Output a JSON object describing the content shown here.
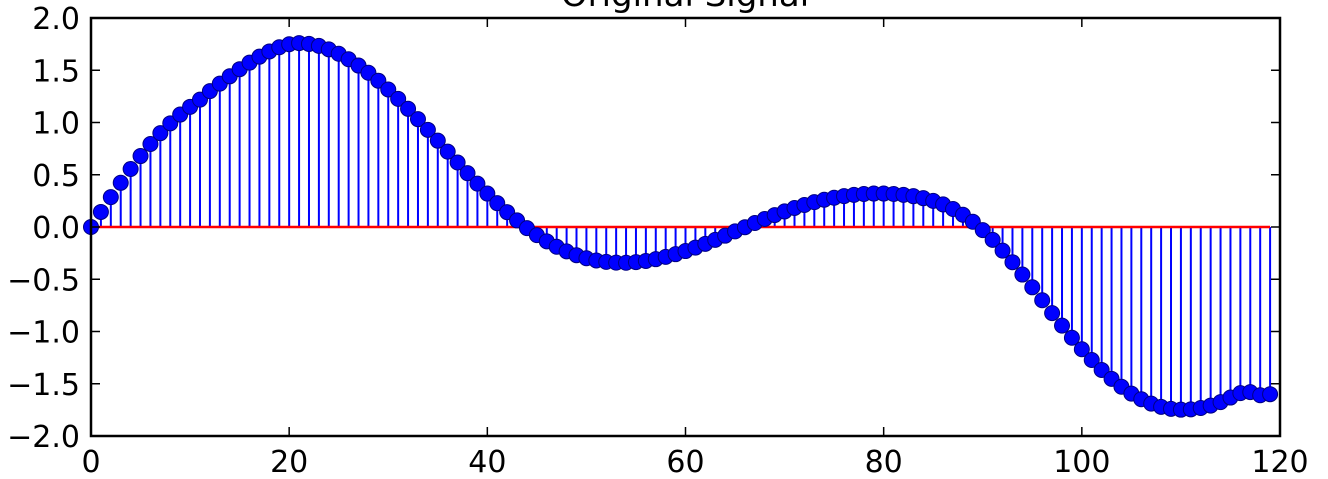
{
  "chart_data": {
    "type": "stem",
    "title": "Original Signal",
    "xlim": [
      0,
      120
    ],
    "ylim": [
      -2.0,
      2.0
    ],
    "x_ticks": [
      "0",
      "20",
      "40",
      "60",
      "80",
      "100",
      "120"
    ],
    "y_ticks": [
      "2.0",
      "1.5",
      "1.0",
      "0.5",
      "0.0",
      "−0.5",
      "−1.0",
      "−1.5",
      "−2.0"
    ],
    "baseline": 0.0,
    "colors": {
      "stem": "#0000ff",
      "marker": "#0000ff",
      "marker_edge": "#000080",
      "baseline": "#ff0000"
    },
    "series": [
      {
        "x": [
          0,
          1,
          2,
          3,
          4,
          5,
          6,
          7,
          8,
          9,
          10,
          11,
          12,
          13,
          14,
          15,
          16,
          17,
          18,
          19,
          20,
          21,
          22,
          23,
          24,
          25,
          26,
          27,
          28,
          29,
          30,
          31,
          32,
          33,
          34,
          35,
          36,
          37,
          38,
          39,
          40,
          41,
          42,
          43,
          44,
          45,
          46,
          47,
          48,
          49,
          50,
          51,
          52,
          53,
          54,
          55,
          56,
          57,
          58,
          59,
          60,
          61,
          62,
          63,
          64,
          65,
          66,
          67,
          68,
          69,
          70,
          71,
          72,
          73,
          74,
          75,
          76,
          77,
          78,
          79,
          80,
          81,
          82,
          83,
          84,
          85,
          86,
          87,
          88,
          89,
          90,
          91,
          92,
          93,
          94,
          95,
          96,
          97,
          98,
          99,
          100,
          101,
          102,
          103,
          104,
          105,
          106,
          107,
          108,
          109,
          110,
          111,
          112,
          113,
          114,
          115,
          116,
          117,
          118,
          119
        ],
        "y": [
          0.0,
          0.144,
          0.286,
          0.423,
          0.555,
          0.679,
          0.794,
          0.898,
          0.992,
          1.076,
          1.15,
          1.219,
          1.3,
          1.372,
          1.442,
          1.51,
          1.573,
          1.63,
          1.68,
          1.72,
          1.749,
          1.76,
          1.752,
          1.733,
          1.7,
          1.658,
          1.605,
          1.545,
          1.476,
          1.4,
          1.316,
          1.226,
          1.131,
          1.032,
          0.93,
          0.826,
          0.721,
          0.617,
          0.515,
          0.415,
          0.32,
          0.228,
          0.142,
          0.063,
          -0.011,
          -0.078,
          -0.137,
          -0.189,
          -0.233,
          -0.27,
          -0.299,
          -0.32,
          -0.334,
          -0.341,
          -0.342,
          -0.336,
          -0.325,
          -0.308,
          -0.286,
          -0.26,
          -0.23,
          -0.197,
          -0.161,
          -0.123,
          -0.083,
          -0.042,
          -0.002,
          0.038,
          0.077,
          0.114,
          0.149,
          0.182,
          0.211,
          0.238,
          0.261,
          0.28,
          0.296,
          0.308,
          0.316,
          0.32,
          0.32,
          0.316,
          0.308,
          0.295,
          0.276,
          0.25,
          0.216,
          0.172,
          0.117,
          0.05,
          -0.03,
          -0.123,
          -0.226,
          -0.337,
          -0.455,
          -0.577,
          -0.701,
          -0.824,
          -0.944,
          -1.06,
          -1.17,
          -1.273,
          -1.368,
          -1.453,
          -1.529,
          -1.594,
          -1.648,
          -1.69,
          -1.721,
          -1.74,
          -1.748,
          -1.745,
          -1.732,
          -1.709,
          -1.676,
          -1.632,
          -1.59,
          -1.58,
          -1.61,
          -1.6
        ]
      }
    ]
  }
}
